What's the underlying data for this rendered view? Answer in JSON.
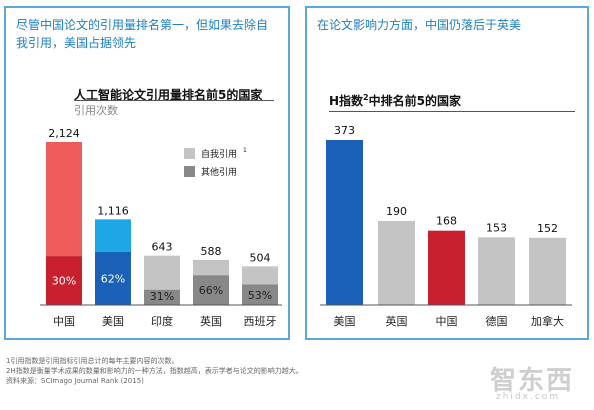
{
  "left_panel": {
    "headline": "尽管中国论文的引用量排名第一，但如果去除自我引用，美国占据领先"
  },
  "right_panel": {
    "headline": "在论文影响力方面，中国仍落后于英美"
  },
  "chart_data": [
    {
      "type": "bar",
      "title": "人工智能论文引用量排名前5的国家",
      "subtitle": "引用次数",
      "categories": [
        "中国",
        "美国",
        "印度",
        "英国",
        "西班牙"
      ],
      "totals": [
        2124,
        1116,
        643,
        588,
        504
      ],
      "total_labels": [
        "2,124",
        "1,116",
        "643",
        "588",
        "504"
      ],
      "self_citation_percent": [
        30,
        62,
        31,
        66,
        53
      ],
      "self_citation_labels": [
        "30%",
        "62%",
        "31%",
        "66%",
        "53%"
      ],
      "legend": [
        {
          "label": "自我引用",
          "sup": "1"
        },
        {
          "label": "其他引用",
          "sup": ""
        }
      ],
      "legend_placement": "top-right",
      "ylim": [
        0,
        2200
      ],
      "colors": {
        "china_self": "#c8202e",
        "china_other": "#ef5b5b",
        "usa_self": "#1a5fb8",
        "usa_other": "#1ea7e6",
        "others_self": "#888888",
        "others_other": "#c4c4c4"
      }
    },
    {
      "type": "bar",
      "title": "H指数",
      "title_sup": "2",
      "title_rest": "中排名前5的国家",
      "categories": [
        "美国",
        "英国",
        "中国",
        "德国",
        "加拿大"
      ],
      "values": [
        373,
        190,
        168,
        153,
        152
      ],
      "ylim": [
        0,
        400
      ],
      "colors": [
        "#1a5fb8",
        "#c4c4c4",
        "#c8202e",
        "#c4c4c4",
        "#c4c4c4"
      ]
    }
  ],
  "footnotes": [
    "1引用指数是引用指标引用总计的每年主要内容的次数。",
    "2H指数是衡量学术成果的数量和影响力的一种方法，指数越高，表示学者与论文的影响力越大。",
    "资料来源：SCImago Journal Rank (2015)"
  ],
  "watermark": {
    "main": "智东西",
    "sub": "zhidx.com"
  }
}
